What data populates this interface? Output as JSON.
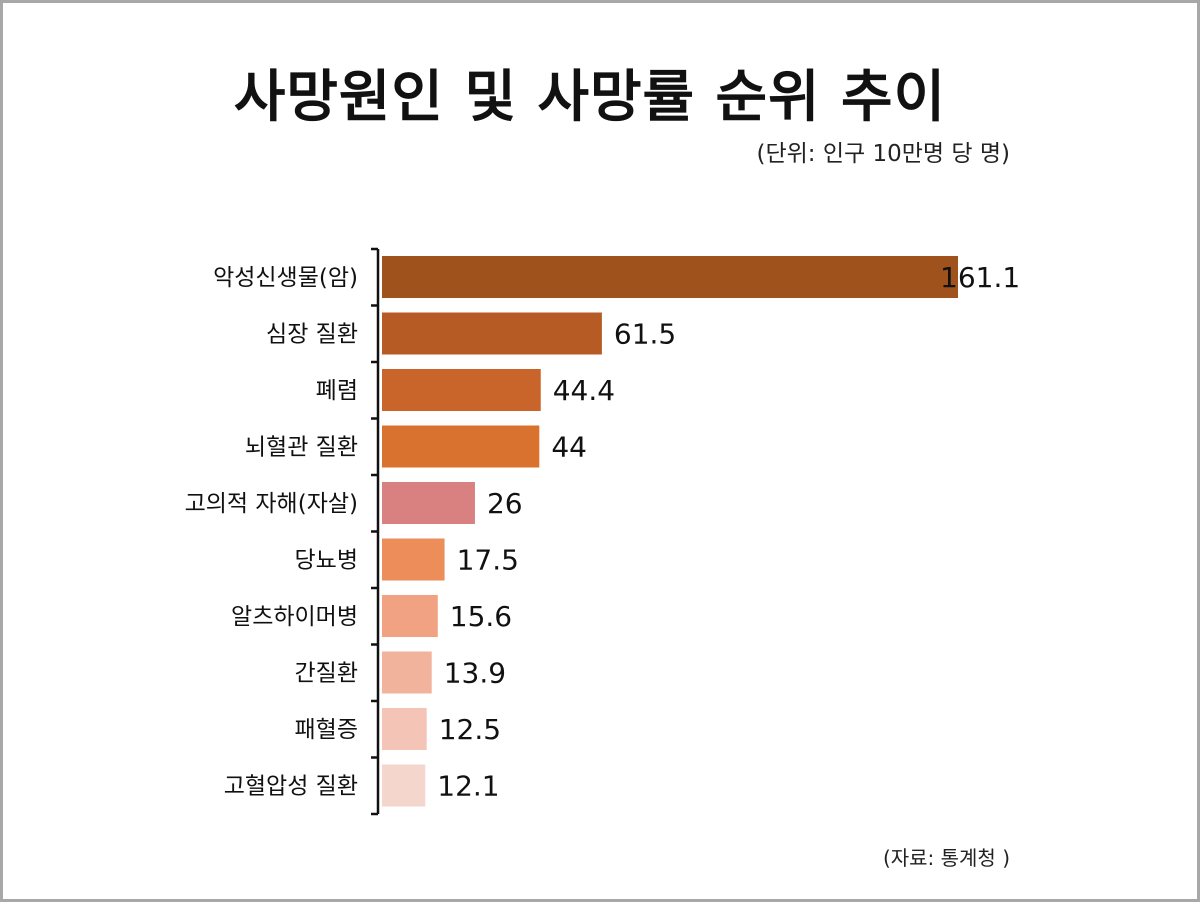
{
  "title": "사망원인 및 사망률 순위 추이",
  "unit_note": "(단위: 인구 10만명 당 명)",
  "source_note": "(자료: 통계청 )",
  "chart_data": {
    "type": "bar",
    "orientation": "horizontal",
    "categories": [
      "악성신생물(암)",
      "심장 질환",
      "폐렴",
      "뇌혈관 질환",
      "고의적 자해(자살)",
      "당뇨병",
      "알츠하이머병",
      "간질환",
      "패혈증",
      "고혈압성 질환"
    ],
    "values": [
      161.1,
      61.5,
      44.4,
      44,
      26,
      17.5,
      15.6,
      13.9,
      12.5,
      12.1
    ],
    "value_labels": [
      "161.1",
      "61.5",
      "44.4",
      "44",
      "26",
      "17.5",
      "15.6",
      "13.9",
      "12.5",
      "12.1"
    ],
    "colors": [
      "#a0521d",
      "#b75b24",
      "#c9652b",
      "#d9722e",
      "#d98181",
      "#ed8d5a",
      "#f0a283",
      "#f2b39d",
      "#f4c5b6",
      "#f5d6cc"
    ],
    "xlim": [
      0,
      161.1
    ],
    "grid": false,
    "legend": "none"
  }
}
